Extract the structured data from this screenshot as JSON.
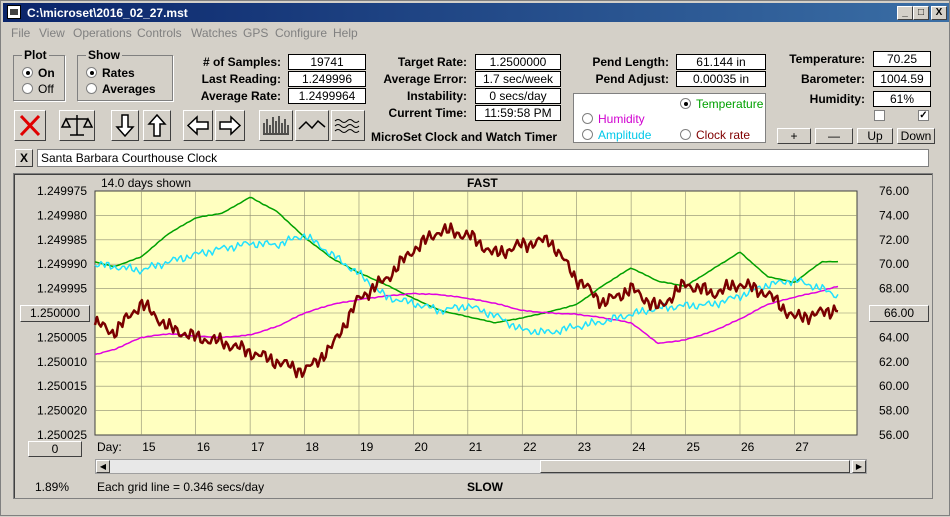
{
  "window": {
    "title": "C:\\microset\\2016_02_27.mst",
    "min": "_",
    "max": "□",
    "close": "X"
  },
  "menu": [
    "File",
    "View",
    "Operations",
    "Controls",
    "Watches",
    "GPS",
    "Configure",
    "Help"
  ],
  "plot": {
    "label": "Plot",
    "on": "On",
    "off": "Off",
    "selected": "On"
  },
  "show": {
    "label": "Show",
    "rates": "Rates",
    "averages": "Averages",
    "selected": "Rates"
  },
  "stats": [
    {
      "label": "# of Samples:",
      "value": "19741"
    },
    {
      "label": "Last Reading:",
      "value": "1.249996"
    },
    {
      "label": "Average Rate:",
      "value": "1.2499964"
    }
  ],
  "rates": [
    {
      "label": "Target Rate:",
      "value": "1.2500000"
    },
    {
      "label": "Average Error:",
      "value": "1.7 sec/week"
    },
    {
      "label": "Instability:",
      "value": "0 secs/day"
    },
    {
      "label": "Current Time:",
      "value": "11:59:58 PM"
    }
  ],
  "app_name": "MicroSet Clock and Watch Timer",
  "pend": [
    {
      "label": "Pend Length:",
      "value": "61.144 in"
    },
    {
      "label": "Pend Adjust:",
      "value": "0.00035 in"
    }
  ],
  "sensors": [
    {
      "label": "Temperature:",
      "value": "70.25"
    },
    {
      "label": "Barometer:",
      "value": "1004.59"
    },
    {
      "label": "Humidity:",
      "value": "61%"
    }
  ],
  "series_select": {
    "temperature": "Temperature",
    "humidity": "Humidity",
    "amplitude": "Amplitude",
    "clock_rate": "Clock rate",
    "selected": "Temperature"
  },
  "adjust_buttons": {
    "plus": "+",
    "minus": "—",
    "up": "Up",
    "down": "Down"
  },
  "comment": "Santa Barbara Courthouse Clock",
  "comment_close": "X",
  "chart_top_left": "14.0 days shown",
  "zoom_left": "0",
  "percent": "1.89%",
  "grid_note": "Each grid line = 0.346 secs/day",
  "colors": {
    "bg": "#ffffc0",
    "rate": "#7a0000",
    "temperature": "#00a000",
    "humidity": "#e000e0",
    "amplitude": "#20e0ff"
  },
  "chart_data": {
    "type": "line",
    "title": "FAST",
    "bottom_label": "SLOW",
    "xlabel": "Day:",
    "x_ticks": [
      "15",
      "16",
      "17",
      "18",
      "19",
      "20",
      "21",
      "22",
      "23",
      "24",
      "25",
      "26",
      "27"
    ],
    "xlim": [
      14.15,
      28.15
    ],
    "y_left_ticks": [
      "1.249975",
      "1.249980",
      "1.249985",
      "1.249990",
      "1.249995",
      "1.250000",
      "1.250005",
      "1.250010",
      "1.250015",
      "1.250020",
      "1.250025"
    ],
    "y_left_lim": [
      1.249975,
      1.250025
    ],
    "y_left_inverted": true,
    "y_left_highlight": "1.250000",
    "y_right_ticks": [
      "76.00",
      "74.00",
      "72.00",
      "70.00",
      "68.00",
      "66.00",
      "64.00",
      "62.00",
      "60.00",
      "58.00",
      "56.00"
    ],
    "y_right_lim": [
      56,
      76
    ],
    "y_right_highlight": "66.00",
    "grid": true,
    "series": [
      {
        "key": "temperature",
        "axis": "right",
        "x": [
          14.15,
          14.5,
          15,
          15.5,
          16,
          16.5,
          17,
          17.5,
          18,
          18.5,
          19,
          19.5,
          20,
          20.5,
          21,
          21.5,
          22,
          22.5,
          23,
          23.5,
          24,
          24.5,
          25,
          25.5,
          26,
          26.5,
          27,
          27.5,
          27.8
        ],
        "y": [
          70.2,
          69.8,
          70.6,
          72.5,
          73.8,
          74.2,
          75.5,
          74.3,
          72.2,
          70.5,
          69.3,
          68.3,
          67.2,
          66.2,
          65.7,
          65.2,
          65.6,
          66.1,
          66.7,
          68.3,
          69.7,
          68.6,
          68.2,
          69.6,
          71.0,
          69.0,
          68.5,
          70.2,
          70.2
        ]
      },
      {
        "key": "humidity",
        "axis": "right",
        "x": [
          14.15,
          14.5,
          15,
          15.5,
          16,
          16.5,
          17,
          17.5,
          18,
          18.5,
          19,
          19.5,
          20,
          20.5,
          21,
          21.5,
          22,
          22.5,
          23,
          23.5,
          24,
          24.5,
          25,
          25.5,
          26,
          26.5,
          27,
          27.5,
          27.8
        ],
        "y": [
          62.6,
          63.0,
          64.0,
          64.3,
          64.1,
          64.0,
          64.2,
          64.9,
          66.0,
          66.7,
          67.1,
          67.4,
          67.6,
          67.5,
          67.2,
          66.8,
          66.2,
          66.0,
          65.9,
          65.6,
          65.2,
          63.5,
          63.8,
          64.5,
          65.5,
          66.7,
          67.3,
          67.8,
          68.2
        ]
      },
      {
        "key": "amplitude",
        "axis": "right",
        "x": [
          14.15,
          14.5,
          15,
          15.5,
          16,
          16.5,
          17,
          17.5,
          18,
          18.5,
          19,
          19.5,
          20,
          20.5,
          21,
          21.5,
          22,
          22.5,
          23,
          23.5,
          24,
          24.5,
          25,
          25.5,
          26,
          26.5,
          27,
          27.5,
          27.8
        ],
        "y": [
          70.0,
          69.8,
          69.5,
          70.2,
          70.8,
          71.3,
          71.7,
          71.6,
          72.4,
          70.8,
          69.2,
          67.3,
          66.8,
          66.2,
          66.6,
          65.8,
          64.6,
          64.4,
          64.9,
          65.3,
          65.9,
          66.4,
          66.6,
          66.7,
          67.4,
          68.3,
          68.7,
          68.0,
          67.4
        ]
      },
      {
        "key": "rate",
        "axis": "left",
        "x": [
          14.15,
          14.5,
          15,
          15.5,
          16,
          16.5,
          17,
          17.5,
          18,
          18.5,
          19,
          19.5,
          20,
          20.5,
          21,
          21.5,
          22,
          22.5,
          23,
          23.5,
          24,
          24.5,
          25,
          25.5,
          26,
          26.5,
          27,
          27.5,
          27.8
        ],
        "y": [
          1.250002,
          1.250004,
          1.249998,
          1.250003,
          1.250005,
          1.250006,
          1.250008,
          1.25001,
          1.250012,
          1.250007,
          1.249997,
          1.249993,
          1.249987,
          1.249983,
          1.249984,
          1.249988,
          1.249986,
          1.249985,
          1.249993,
          1.249998,
          1.249995,
          1.249999,
          1.249994,
          1.249996,
          1.249994,
          1.249996,
          1.250001,
          1.25,
          1.249999
        ]
      }
    ]
  }
}
